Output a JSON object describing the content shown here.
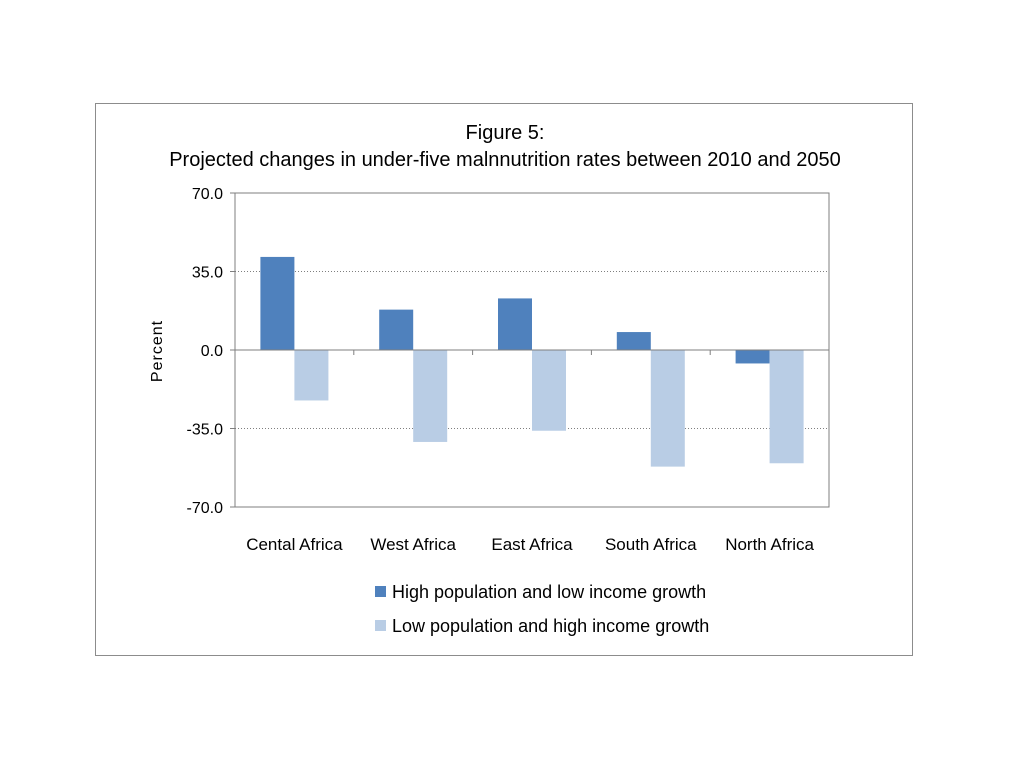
{
  "chart_data": {
    "type": "bar",
    "title": [
      "Figure 5:",
      "Projected changes in under-five malnnutrition rates between 2010 and 2050"
    ],
    "ylabel": "Percent",
    "xlabel": "",
    "ylim": [
      -70,
      70
    ],
    "yticks": [
      "70.0",
      "35.0",
      "0.0",
      "-35.0",
      "-70.0"
    ],
    "ytick_values": [
      70,
      35,
      0,
      -35,
      -70
    ],
    "grid": "horizontal dotted",
    "legend_position": "bottom",
    "categories": [
      "Cental Africa",
      "West Africa",
      "East Africa",
      "South Africa",
      "North Africa"
    ],
    "series": [
      {
        "name": "High population and low income growth",
        "color": "#4f81bd",
        "values": [
          41.5,
          18.0,
          23.0,
          8.0,
          -6.0
        ]
      },
      {
        "name": "Low population and high income growth",
        "color": "#b9cde5",
        "values": [
          -22.5,
          -41.0,
          -36.0,
          -52.0,
          -50.5
        ]
      }
    ]
  }
}
